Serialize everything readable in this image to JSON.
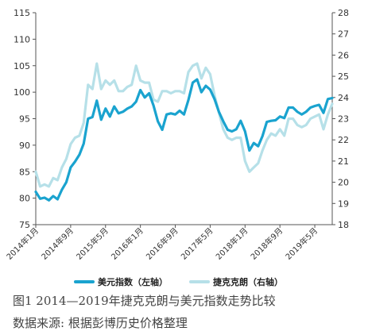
{
  "chart_data": {
    "type": "line",
    "title": "",
    "x": [
      "2014年1月",
      "2014年2月",
      "2014年3月",
      "2014年4月",
      "2014年5月",
      "2014年6月",
      "2014年7月",
      "2014年8月",
      "2014年9月",
      "2014年10月",
      "2014年11月",
      "2014年12月",
      "2015年1月",
      "2015年2月",
      "2015年3月",
      "2015年4月",
      "2015年5月",
      "2015年6月",
      "2015年7月",
      "2015年8月",
      "2015年9月",
      "2015年10月",
      "2015年11月",
      "2015年12月",
      "2016年1月",
      "2016年2月",
      "2016年3月",
      "2016年4月",
      "2016年5月",
      "2016年6月",
      "2016年7月",
      "2016年8月",
      "2016年9月",
      "2016年10月",
      "2016年11月",
      "2016年12月",
      "2017年1月",
      "2017年2月",
      "2017年3月",
      "2017年4月",
      "2017年5月",
      "2017年6月",
      "2017年7月",
      "2017年8月",
      "2017年9月",
      "2017年10月",
      "2017年11月",
      "2017年12月",
      "2018年1月",
      "2018年2月",
      "2018年3月",
      "2018年4月",
      "2018年5月",
      "2018年6月",
      "2018年7月",
      "2018年8月",
      "2018年9月",
      "2018年10月",
      "2018年11月",
      "2018年12月",
      "2019年1月",
      "2019年2月",
      "2019年3月",
      "2019年4月",
      "2019年5月",
      "2019年6月",
      "2019年7月",
      "2019年8月",
      "2019年9月"
    ],
    "x_tick_labels": [
      "2014年1月",
      "2014年9月",
      "2015年5月",
      "2016年1月",
      "2016年9月",
      "2017年5月",
      "2018年1月",
      "2018年9月",
      "2019年5月"
    ],
    "x_tick_index": [
      0,
      8,
      16,
      24,
      32,
      40,
      48,
      56,
      64
    ],
    "y_left": {
      "range": [
        75,
        115
      ],
      "ticks": [
        75,
        80,
        85,
        90,
        95,
        100,
        105,
        110,
        115
      ]
    },
    "y_right": {
      "range": [
        18,
        28
      ],
      "ticks": [
        18,
        19,
        20,
        21,
        22,
        23,
        24,
        25,
        26,
        27,
        28
      ]
    },
    "legend_position": "bottom",
    "grid": false,
    "series": [
      {
        "name": "美元指数（左轴）",
        "axis": "left",
        "color": "#1aa3cf",
        "values": [
          81.2,
          79.9,
          80.1,
          79.6,
          80.4,
          79.8,
          81.6,
          83.0,
          85.8,
          86.9,
          88.2,
          90.3,
          95.0,
          95.3,
          98.4,
          94.8,
          96.9,
          95.4,
          97.3,
          96.0,
          96.3,
          96.9,
          97.3,
          98.2,
          100.4,
          99.0,
          99.8,
          97.5,
          94.5,
          92.9,
          95.8,
          96.0,
          95.8,
          96.5,
          95.8,
          98.5,
          101.8,
          102.4,
          100.0,
          101.2,
          100.5,
          98.7,
          96.3,
          94.5,
          92.9,
          92.6,
          93.0,
          94.6,
          92.6,
          89.0,
          90.4,
          89.8,
          91.7,
          94.4,
          94.6,
          94.7,
          95.4,
          95.1,
          97.1,
          97.1,
          96.3,
          95.8,
          96.3,
          97.1,
          97.4,
          97.6,
          96.1,
          98.7,
          98.9
        ]
      },
      {
        "name": "捷克克朗（右轴）",
        "axis": "right",
        "color": "#b6e0e8",
        "values": [
          20.5,
          19.8,
          19.9,
          19.8,
          20.2,
          20.1,
          20.7,
          21.1,
          21.8,
          22.1,
          22.2,
          22.8,
          24.6,
          24.4,
          25.6,
          24.4,
          24.8,
          24.6,
          24.8,
          24.3,
          24.3,
          24.5,
          24.6,
          25.5,
          24.8,
          24.7,
          24.7,
          23.9,
          23.8,
          24.3,
          24.3,
          24.2,
          24.3,
          24.3,
          24.2,
          25.2,
          25.5,
          25.6,
          24.9,
          25.4,
          25.1,
          24.1,
          23.3,
          22.5,
          22.1,
          22.0,
          22.1,
          22.1,
          21.0,
          20.5,
          20.7,
          20.9,
          21.5,
          22.0,
          22.3,
          22.2,
          22.5,
          22.2,
          23.0,
          23.0,
          22.7,
          22.6,
          22.7,
          23.0,
          23.1,
          23.2,
          22.5,
          23.2,
          23.7
        ]
      }
    ]
  },
  "caption": {
    "figure": "图1   2014—2019年捷克克朗与美元指数走势比较",
    "source": "数据来源: 根据彭博历史价格整理"
  }
}
